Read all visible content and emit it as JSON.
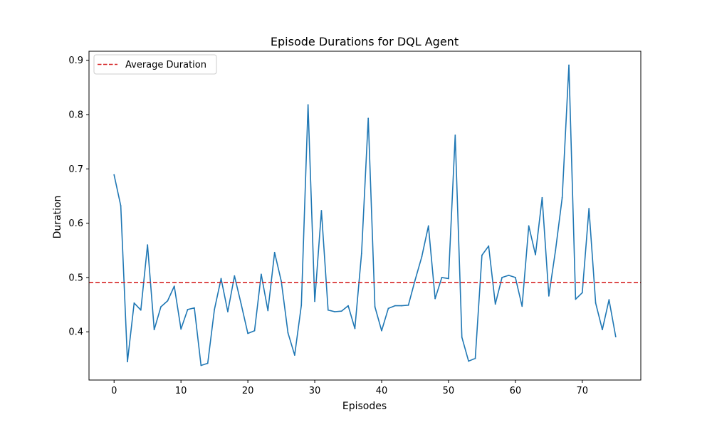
{
  "chart_data": {
    "type": "line",
    "title": "Episode Durations for DQL Agent",
    "xlabel": "Episodes",
    "ylabel": "Duration",
    "xlim": [
      -3.75,
      78.75
    ],
    "ylim": [
      0.3112,
      0.9166
    ],
    "x_ticks": [
      0,
      10,
      20,
      30,
      40,
      50,
      60,
      70
    ],
    "y_ticks": [
      0.4,
      0.5,
      0.6,
      0.7,
      0.8,
      0.9
    ],
    "x_tick_labels": [
      "0",
      "10",
      "20",
      "30",
      "40",
      "50",
      "60",
      "70"
    ],
    "y_tick_labels": [
      "0.4",
      "0.5",
      "0.6",
      "0.7",
      "0.8",
      "0.9"
    ],
    "grid": false,
    "legend_position": "top-left",
    "legend": [
      {
        "label": "Average Duration",
        "color": "#d62728",
        "style": "dashed"
      }
    ],
    "series": [
      {
        "color": "#1f77b4",
        "x": [
          0,
          1,
          2,
          3,
          4,
          5,
          6,
          7,
          8,
          9,
          10,
          11,
          12,
          13,
          14,
          15,
          16,
          17,
          18,
          19,
          20,
          21,
          22,
          23,
          24,
          25,
          26,
          27,
          28,
          29,
          30,
          31,
          32,
          33,
          34,
          35,
          36,
          37,
          38,
          39,
          40,
          41,
          42,
          43,
          44,
          45,
          46,
          47,
          48,
          49,
          50,
          51,
          52,
          53,
          54,
          55,
          56,
          57,
          58,
          59,
          60,
          61,
          62,
          63,
          64,
          65,
          66,
          67,
          68,
          69,
          70,
          71,
          72,
          73,
          74,
          75
        ],
        "values": [
          0.689,
          0.632,
          0.345,
          0.453,
          0.44,
          0.56,
          0.404,
          0.446,
          0.457,
          0.484,
          0.405,
          0.441,
          0.444,
          0.338,
          0.342,
          0.441,
          0.498,
          0.437,
          0.503,
          0.451,
          0.397,
          0.402,
          0.506,
          0.439,
          0.546,
          0.493,
          0.398,
          0.357,
          0.449,
          0.818,
          0.456,
          0.623,
          0.44,
          0.437,
          0.438,
          0.448,
          0.406,
          0.544,
          0.793,
          0.446,
          0.402,
          0.443,
          0.448,
          0.448,
          0.449,
          0.495,
          0.538,
          0.595,
          0.461,
          0.5,
          0.498,
          0.762,
          0.39,
          0.346,
          0.351,
          0.541,
          0.558,
          0.451,
          0.5,
          0.504,
          0.5,
          0.447,
          0.595,
          0.542,
          0.647,
          0.466,
          0.55,
          0.647,
          0.891,
          0.46,
          0.472,
          0.627,
          0.453,
          0.404,
          0.459,
          0.391
        ]
      }
    ],
    "average_line": {
      "name": "Average Duration",
      "value": 0.491,
      "color": "#d62728"
    }
  }
}
